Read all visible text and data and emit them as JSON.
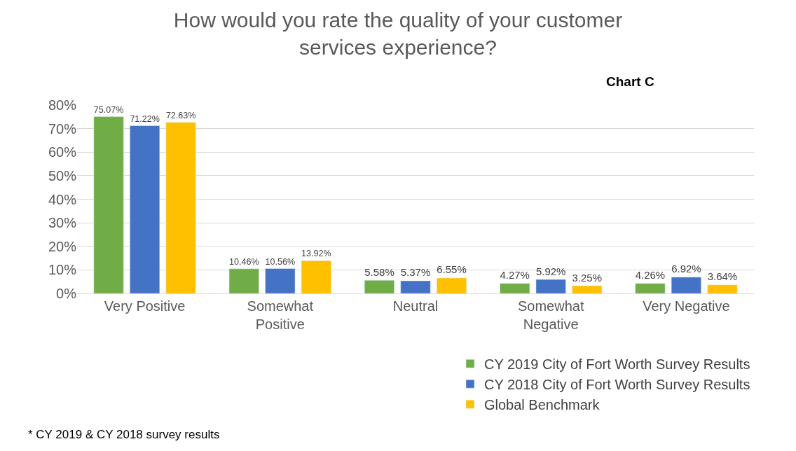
{
  "chart_data": {
    "type": "bar",
    "title": "How would you rate the quality of your customer services experience?",
    "categories": [
      "Very Positive",
      "Somewhat Positive",
      "Neutral",
      "Somewhat Negative",
      "Very Negative"
    ],
    "series": [
      {
        "name": "CY 2019 City of Fort Worth Survey Results",
        "color": "#70ad47",
        "values": [
          75.07,
          10.46,
          5.58,
          4.27,
          4.26
        ],
        "value_labels": [
          "75.07%",
          "10.46%",
          "5.58%",
          "4.27%",
          "4.26%"
        ]
      },
      {
        "name": "CY 2018 City of Fort Worth Survey Results",
        "color": "#4472c4",
        "values": [
          71.22,
          10.56,
          5.37,
          5.92,
          6.92
        ],
        "value_labels": [
          "71.22%",
          "10.56%",
          "5.37%",
          "5.92%",
          "6.92%"
        ]
      },
      {
        "name": "Global Benchmark",
        "color": "#ffc000",
        "values": [
          72.63,
          13.92,
          6.55,
          3.25,
          3.64
        ],
        "value_labels": [
          "72.63%",
          "13.92%",
          "6.55%",
          "3.25%",
          "3.64%"
        ]
      }
    ],
    "ylim": [
      0,
      80
    ],
    "yticks": [
      {
        "value": 0,
        "label": "0%"
      },
      {
        "value": 10,
        "label": "10%"
      },
      {
        "value": 20,
        "label": "20%"
      },
      {
        "value": 30,
        "label": "30%"
      },
      {
        "value": 40,
        "label": "40%"
      },
      {
        "value": 50,
        "label": "50%"
      },
      {
        "value": 60,
        "label": "60%"
      },
      {
        "value": 70,
        "label": "70%"
      },
      {
        "value": 80,
        "label": "80%"
      }
    ],
    "grid": "y",
    "legend": "bottom right",
    "annotations": [
      "Chart C",
      "* CY 2019 & CY 2018 survey results"
    ]
  }
}
